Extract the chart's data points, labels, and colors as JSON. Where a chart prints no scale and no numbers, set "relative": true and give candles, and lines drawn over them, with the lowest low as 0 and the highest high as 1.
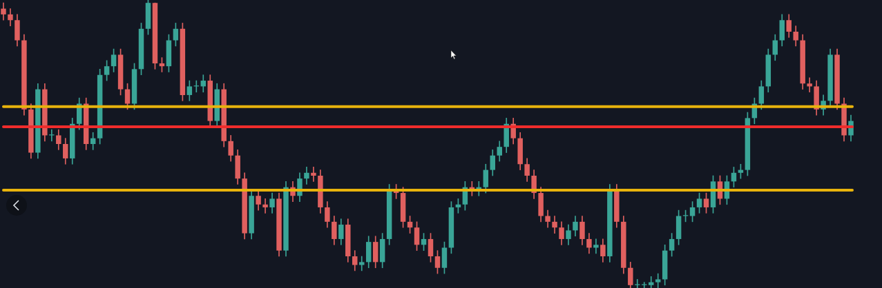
{
  "chart_data": {
    "type": "candlestick",
    "relative": true,
    "categories": [
      null,
      null,
      null,
      null,
      null,
      null,
      null,
      null,
      null,
      null,
      null,
      null,
      null,
      null,
      null,
      null,
      null,
      null,
      null,
      null,
      null,
      null,
      null,
      null,
      null,
      null,
      null,
      null,
      null,
      null,
      null,
      null,
      null,
      null,
      null,
      null,
      null,
      null,
      null,
      null,
      null,
      null,
      null,
      null,
      null,
      null,
      null,
      null,
      null,
      null,
      null,
      null,
      null,
      null,
      null,
      null,
      null,
      null,
      null,
      null,
      null,
      null,
      null,
      null,
      null,
      null,
      null,
      null,
      null,
      null,
      null,
      null,
      null,
      null,
      null,
      null,
      null,
      null,
      null,
      null,
      null,
      null,
      null,
      null,
      null,
      null,
      null,
      null,
      null,
      null,
      null,
      null,
      null,
      null,
      null,
      null,
      null,
      null,
      null,
      null,
      null,
      null,
      null,
      null,
      null,
      null,
      null,
      null,
      null,
      null,
      null,
      null,
      null,
      null,
      null,
      null,
      null,
      null,
      null,
      null,
      null,
      null,
      null,
      null
    ],
    "ohlc": [
      [
        0.97,
        0.99,
        0.93,
        0.95
      ],
      [
        0.95,
        0.97,
        0.91,
        0.93
      ],
      [
        0.93,
        0.95,
        0.84,
        0.86
      ],
      [
        0.86,
        0.88,
        0.6,
        0.62
      ],
      [
        0.62,
        0.64,
        0.45,
        0.47
      ],
      [
        0.47,
        0.71,
        0.45,
        0.69
      ],
      [
        0.69,
        0.71,
        0.51,
        0.53
      ],
      [
        0.53,
        0.55,
        0.51,
        0.53
      ],
      [
        0.53,
        0.55,
        0.48,
        0.5
      ],
      [
        0.5,
        0.52,
        0.43,
        0.45
      ],
      [
        0.45,
        0.59,
        0.43,
        0.57
      ],
      [
        0.57,
        0.66,
        0.55,
        0.64
      ],
      [
        0.64,
        0.66,
        0.48,
        0.5
      ],
      [
        0.5,
        0.54,
        0.48,
        0.52
      ],
      [
        0.52,
        0.76,
        0.5,
        0.74
      ],
      [
        0.74,
        0.79,
        0.72,
        0.77
      ],
      [
        0.77,
        0.83,
        0.75,
        0.81
      ],
      [
        0.81,
        0.83,
        0.67,
        0.69
      ],
      [
        0.69,
        0.71,
        0.62,
        0.64
      ],
      [
        0.64,
        0.78,
        0.62,
        0.76
      ],
      [
        0.76,
        0.92,
        0.74,
        0.9
      ],
      [
        0.9,
        1,
        0.88,
        0.99
      ],
      [
        0.99,
        0.99,
        0.76,
        0.78
      ],
      [
        0.78,
        0.8,
        0.75,
        0.77
      ],
      [
        0.77,
        0.88,
        0.75,
        0.86
      ],
      [
        0.86,
        0.92,
        0.84,
        0.9
      ],
      [
        0.9,
        0.92,
        0.65,
        0.67
      ],
      [
        0.67,
        0.72,
        0.65,
        0.7
      ],
      [
        0.7,
        0.72,
        0.68,
        0.7
      ],
      [
        0.7,
        0.74,
        0.68,
        0.72
      ],
      [
        0.72,
        0.74,
        0.56,
        0.58
      ],
      [
        0.58,
        0.71,
        0.56,
        0.69
      ],
      [
        0.69,
        0.71,
        0.49,
        0.51
      ],
      [
        0.51,
        0.53,
        0.44,
        0.46
      ],
      [
        0.46,
        0.48,
        0.36,
        0.38
      ],
      [
        0.38,
        0.4,
        0.17,
        0.19
      ],
      [
        0.19,
        0.34,
        0.17,
        0.32
      ],
      [
        0.32,
        0.34,
        0.27,
        0.29
      ],
      [
        0.29,
        0.31,
        0.26,
        0.28
      ],
      [
        0.28,
        0.33,
        0.26,
        0.31
      ],
      [
        0.31,
        0.33,
        0.11,
        0.13
      ],
      [
        0.13,
        0.37,
        0.11,
        0.35
      ],
      [
        0.35,
        0.37,
        0.3,
        0.32
      ],
      [
        0.32,
        0.4,
        0.3,
        0.38
      ],
      [
        0.38,
        0.42,
        0.36,
        0.4
      ],
      [
        0.4,
        0.42,
        0.37,
        0.39
      ],
      [
        0.39,
        0.41,
        0.26,
        0.28
      ],
      [
        0.28,
        0.3,
        0.21,
        0.23
      ],
      [
        0.23,
        0.25,
        0.15,
        0.17
      ],
      [
        0.17,
        0.24,
        0.15,
        0.22
      ],
      [
        0.22,
        0.24,
        0.09,
        0.11
      ],
      [
        0.11,
        0.13,
        0.06,
        0.08
      ],
      [
        0.08,
        0.11,
        0.06,
        0.09
      ],
      [
        0.09,
        0.18,
        0.07,
        0.16
      ],
      [
        0.16,
        0.18,
        0.07,
        0.09
      ],
      [
        0.09,
        0.19,
        0.07,
        0.17
      ],
      [
        0.17,
        0.36,
        0.15,
        0.34
      ],
      [
        0.34,
        0.36,
        0.31,
        0.33
      ],
      [
        0.33,
        0.35,
        0.21,
        0.23
      ],
      [
        0.23,
        0.25,
        0.19,
        0.21
      ],
      [
        0.21,
        0.23,
        0.13,
        0.15
      ],
      [
        0.15,
        0.19,
        0.13,
        0.17
      ],
      [
        0.17,
        0.19,
        0.09,
        0.11
      ],
      [
        0.11,
        0.13,
        0.05,
        0.07
      ],
      [
        0.07,
        0.16,
        0.05,
        0.14
      ],
      [
        0.14,
        0.3,
        0.12,
        0.28
      ],
      [
        0.28,
        0.31,
        0.26,
        0.29
      ],
      [
        0.29,
        0.37,
        0.27,
        0.35
      ],
      [
        0.35,
        0.37,
        0.32,
        0.34
      ],
      [
        0.34,
        0.37,
        0.32,
        0.35
      ],
      [
        0.35,
        0.43,
        0.33,
        0.41
      ],
      [
        0.41,
        0.48,
        0.39,
        0.46
      ],
      [
        0.46,
        0.51,
        0.44,
        0.49
      ],
      [
        0.49,
        0.59,
        0.47,
        0.57
      ],
      [
        0.57,
        0.59,
        0.5,
        0.52
      ],
      [
        0.52,
        0.54,
        0.41,
        0.43
      ],
      [
        0.43,
        0.45,
        0.37,
        0.39
      ],
      [
        0.39,
        0.41,
        0.31,
        0.33
      ],
      [
        0.33,
        0.35,
        0.23,
        0.25
      ],
      [
        0.25,
        0.27,
        0.21,
        0.23
      ],
      [
        0.23,
        0.25,
        0.19,
        0.21
      ],
      [
        0.21,
        0.23,
        0.15,
        0.17
      ],
      [
        0.17,
        0.22,
        0.15,
        0.2
      ],
      [
        0.2,
        0.25,
        0.18,
        0.23
      ],
      [
        0.23,
        0.25,
        0.15,
        0.17
      ],
      [
        0.17,
        0.19,
        0.12,
        0.14
      ],
      [
        0.14,
        0.17,
        0.12,
        0.15
      ],
      [
        0.15,
        0.17,
        0.09,
        0.11
      ],
      [
        0.11,
        0.36,
        0.09,
        0.34
      ],
      [
        0.34,
        0.36,
        0.21,
        0.23
      ],
      [
        0.23,
        0.25,
        0.05,
        0.07
      ],
      [
        0.07,
        0.09,
        0,
        0.01
      ],
      [
        0.01,
        0.03,
        0,
        0.01
      ],
      [
        0.01,
        0.02,
        0,
        0.01
      ],
      [
        0.01,
        0.04,
        0,
        0.02
      ],
      [
        0.02,
        0.05,
        0,
        0.03
      ],
      [
        0.03,
        0.15,
        0.01,
        0.13
      ],
      [
        0.13,
        0.19,
        0.11,
        0.17
      ],
      [
        0.17,
        0.27,
        0.15,
        0.25
      ],
      [
        0.25,
        0.27,
        0.23,
        0.25
      ],
      [
        0.25,
        0.3,
        0.23,
        0.28
      ],
      [
        0.28,
        0.33,
        0.26,
        0.31
      ],
      [
        0.31,
        0.33,
        0.26,
        0.28
      ],
      [
        0.28,
        0.39,
        0.26,
        0.37
      ],
      [
        0.37,
        0.39,
        0.29,
        0.31
      ],
      [
        0.31,
        0.39,
        0.29,
        0.37
      ],
      [
        0.37,
        0.42,
        0.35,
        0.4
      ],
      [
        0.4,
        0.43,
        0.38,
        0.41
      ],
      [
        0.41,
        0.61,
        0.39,
        0.59
      ],
      [
        0.59,
        0.66,
        0.57,
        0.64
      ],
      [
        0.64,
        0.72,
        0.62,
        0.7
      ],
      [
        0.7,
        0.83,
        0.68,
        0.81
      ],
      [
        0.81,
        0.88,
        0.79,
        0.86
      ],
      [
        0.86,
        0.95,
        0.84,
        0.93
      ],
      [
        0.93,
        0.95,
        0.87,
        0.89
      ],
      [
        0.89,
        0.91,
        0.84,
        0.86
      ],
      [
        0.86,
        0.88,
        0.69,
        0.71
      ],
      [
        0.71,
        0.73,
        0.68,
        0.7
      ],
      [
        0.7,
        0.72,
        0.6,
        0.62
      ],
      [
        0.62,
        0.67,
        0.6,
        0.65
      ],
      [
        0.65,
        0.83,
        0.63,
        0.81
      ],
      [
        0.81,
        0.83,
        0.62,
        0.64
      ],
      [
        0.64,
        0.66,
        0.51,
        0.53
      ],
      [
        0.53,
        0.6,
        0.51,
        0.58
      ]
    ],
    "ref_lines": [
      {
        "axis": "y",
        "value": 0.63,
        "color": "#e8b30c"
      },
      {
        "axis": "y",
        "value": 0.56,
        "color": "#f02c2c"
      },
      {
        "axis": "y",
        "value": 0.34,
        "color": "#e8b30c"
      }
    ]
  }
}
